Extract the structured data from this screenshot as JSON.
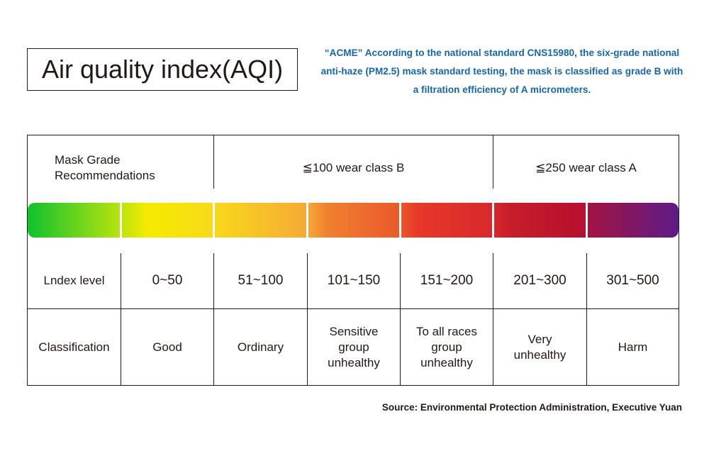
{
  "title": "Air quality index(AQI)",
  "intro": "“ACME” According to the national standard CNS15980, the six-grade national anti-haze (PM2.5) mask standard testing, the mask is classified as grade B with a filtration efficiency of A micrometers.",
  "table": {
    "mask_grade_label": "Mask Grade Recommendations",
    "class_b": "≦100 wear class B",
    "class_a": "≦250 wear class A",
    "index_label": "Lndex level",
    "classification_label": "Classification",
    "levels": [
      {
        "range": "0~50",
        "classification": "Good",
        "color": "#0fc22d"
      },
      {
        "range": "51~100",
        "classification": "Ordinary",
        "color": "#f5ec00"
      },
      {
        "range": "101~150",
        "classification": "Sensitive group unhealthy",
        "color": "#f5a935"
      },
      {
        "range": "151~200",
        "classification": "To all races group unhealthy",
        "color": "#ea5a2a"
      },
      {
        "range": "201~300",
        "classification": "Very unhealthy",
        "color": "#c81e2a"
      },
      {
        "range": "301~500",
        "classification": "Harm",
        "color": "#5e1a88"
      }
    ]
  },
  "source": "Source: Environmental Protection Administration, Executive Yuan"
}
